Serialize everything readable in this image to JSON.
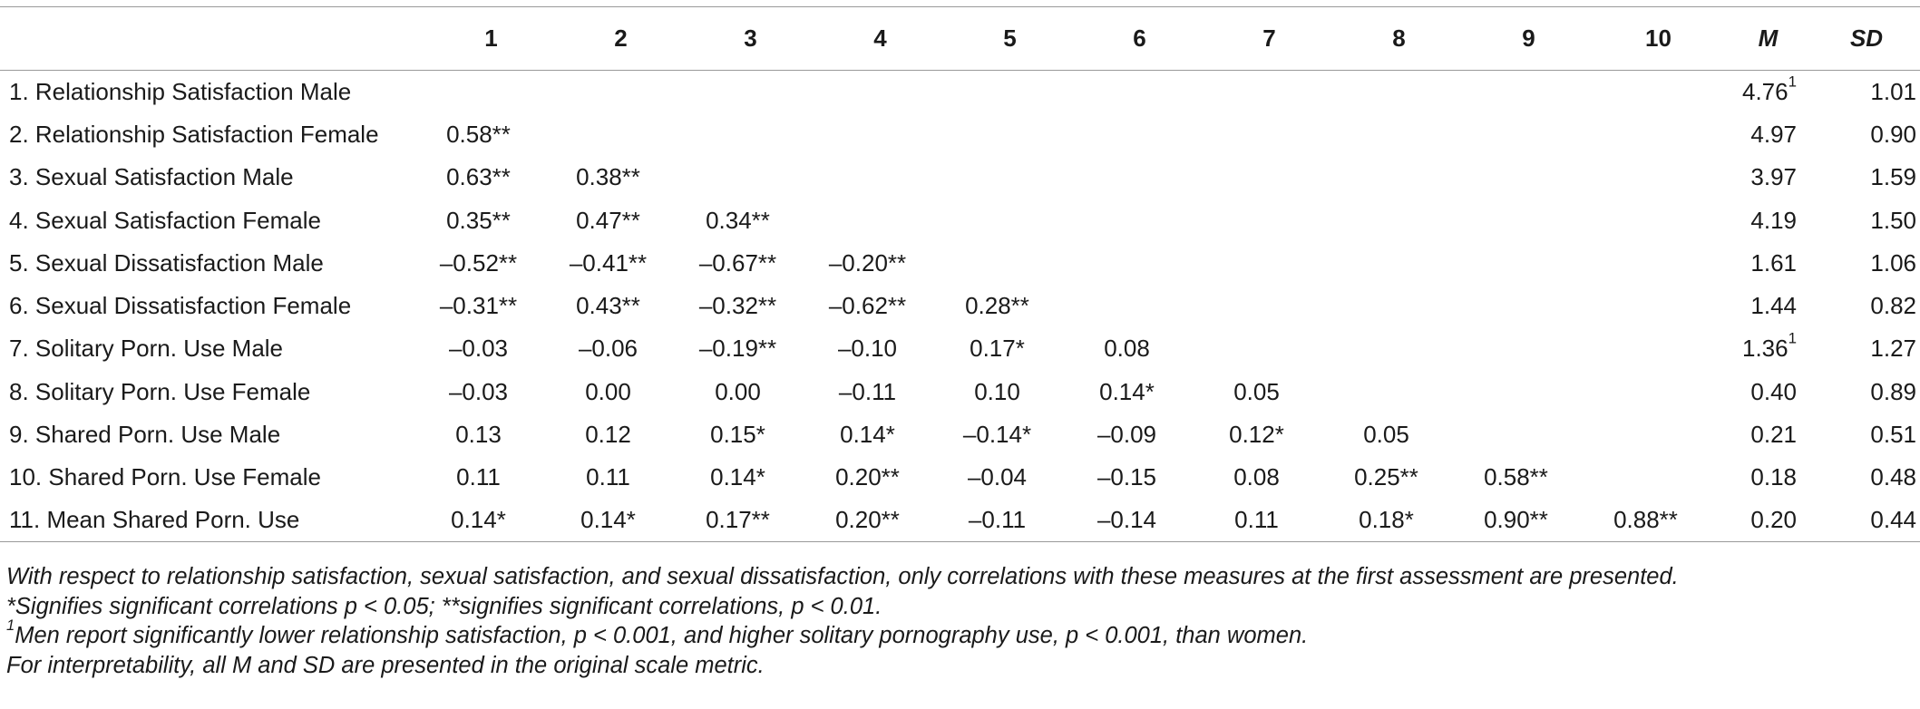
{
  "table": {
    "columns": [
      "",
      "1",
      "2",
      "3",
      "4",
      "5",
      "6",
      "7",
      "8",
      "9",
      "10",
      "M",
      "SD"
    ],
    "rows": [
      {
        "label": "1. Relationship Satisfaction Male",
        "cells": [
          "",
          "",
          "",
          "",
          "",
          "",
          "",
          "",
          "",
          ""
        ],
        "m": "4.76",
        "m_sup": "1",
        "sd": "1.01"
      },
      {
        "label": "2. Relationship Satisfaction Female",
        "cells": [
          "0.58**",
          "",
          "",
          "",
          "",
          "",
          "",
          "",
          "",
          ""
        ],
        "m": "4.97",
        "m_sup": "",
        "sd": "0.90"
      },
      {
        "label": "3. Sexual Satisfaction Male",
        "cells": [
          "0.63**",
          "0.38**",
          "",
          "",
          "",
          "",
          "",
          "",
          "",
          ""
        ],
        "m": "3.97",
        "m_sup": "",
        "sd": "1.59"
      },
      {
        "label": "4. Sexual Satisfaction Female",
        "cells": [
          "0.35**",
          "0.47**",
          "0.34**",
          "",
          "",
          "",
          "",
          "",
          "",
          ""
        ],
        "m": "4.19",
        "m_sup": "",
        "sd": "1.50"
      },
      {
        "label": "5. Sexual Dissatisfaction Male",
        "cells": [
          "–0.52**",
          "–0.41**",
          "–0.67**",
          "–0.20**",
          "",
          "",
          "",
          "",
          "",
          ""
        ],
        "m": "1.61",
        "m_sup": "",
        "sd": "1.06"
      },
      {
        "label": "6. Sexual Dissatisfaction Female",
        "cells": [
          "–0.31**",
          "0.43**",
          "–0.32**",
          "–0.62**",
          "0.28**",
          "",
          "",
          "",
          "",
          ""
        ],
        "m": "1.44",
        "m_sup": "",
        "sd": "0.82"
      },
      {
        "label": "7. Solitary Porn. Use Male",
        "cells": [
          "–0.03",
          "–0.06",
          "–0.19**",
          "–0.10",
          "0.17*",
          "0.08",
          "",
          "",
          "",
          ""
        ],
        "m": "1.36",
        "m_sup": "1",
        "sd": "1.27"
      },
      {
        "label": "8. Solitary Porn. Use Female",
        "cells": [
          "–0.03",
          "0.00",
          "0.00",
          "–0.11",
          "0.10",
          "0.14*",
          "0.05",
          "",
          "",
          ""
        ],
        "m": "0.40",
        "m_sup": "",
        "sd": "0.89"
      },
      {
        "label": "9. Shared Porn. Use Male",
        "cells": [
          "0.13",
          "0.12",
          "0.15*",
          "0.14*",
          "–0.14*",
          "–0.09",
          "0.12*",
          "0.05",
          "",
          ""
        ],
        "m": "0.21",
        "m_sup": "",
        "sd": "0.51"
      },
      {
        "label": "10. Shared Porn. Use Female",
        "cells": [
          "0.11",
          "0.11",
          "0.14*",
          "0.20**",
          "–0.04",
          "–0.15",
          "0.08",
          "0.25**",
          "0.58**",
          ""
        ],
        "m": "0.18",
        "m_sup": "",
        "sd": "0.48"
      },
      {
        "label": "11. Mean Shared Porn. Use",
        "cells": [
          "0.14*",
          "0.14*",
          "0.17**",
          "0.20**",
          "–0.11",
          "–0.14",
          "0.11",
          "0.18*",
          "0.90**",
          "0.88**"
        ],
        "m": "0.20",
        "m_sup": "",
        "sd": "0.44"
      }
    ]
  },
  "notes": {
    "line1": "With respect to relationship satisfaction, sexual satisfaction, and sexual dissatisfaction, only correlations with these measures at the first assessment are presented.",
    "line2": "*Signifies significant correlations p < 0.05; **signifies significant correlations, p < 0.01.",
    "line3_sup": "1",
    "line3": "Men report significantly lower relationship satisfaction, p < 0.001, and higher solitary pornography use, p < 0.001, than women.",
    "line4": "For interpretability, all M and SD are presented in the original scale metric."
  }
}
